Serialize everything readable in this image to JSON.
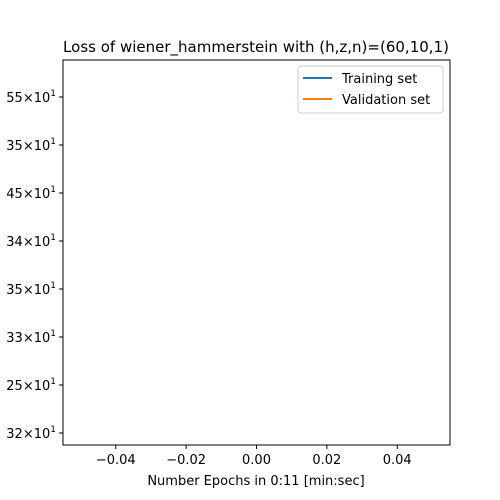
{
  "chart_data": {
    "type": "line",
    "title": "Loss of wiener_hammerstein with (h,z,n)=(60,10,1)",
    "xlabel": "Number Epochs in  0:11 [min:sec]",
    "ylabel": "",
    "xlim": [
      -0.055,
      0.055
    ],
    "x_ticks": [
      -0.04,
      -0.02,
      0.0,
      0.02,
      0.04
    ],
    "x_tick_labels": [
      "−0.04",
      "−0.02",
      "0.00",
      "0.02",
      "0.04"
    ],
    "y_scale": "log",
    "y_tick_labels": [
      {
        "prefix": "55",
        "base": "10",
        "exp": "1"
      },
      {
        "prefix": "35",
        "base": "10",
        "exp": "1"
      },
      {
        "prefix": "45",
        "base": "10",
        "exp": "1"
      },
      {
        "prefix": "34",
        "base": "10",
        "exp": "1"
      },
      {
        "prefix": "35",
        "base": "10",
        "exp": "1"
      },
      {
        "prefix": "33",
        "base": "10",
        "exp": "1"
      },
      {
        "prefix": "25",
        "base": "10",
        "exp": "1"
      },
      {
        "prefix": "32",
        "base": "10",
        "exp": "1"
      }
    ],
    "legend_position": "top-right",
    "grid": false,
    "series": [
      {
        "name": "Training set",
        "color": "#1f77b4",
        "x": [],
        "y": []
      },
      {
        "name": "Validation set",
        "color": "#ff7f0e",
        "x": [],
        "y": []
      }
    ]
  }
}
